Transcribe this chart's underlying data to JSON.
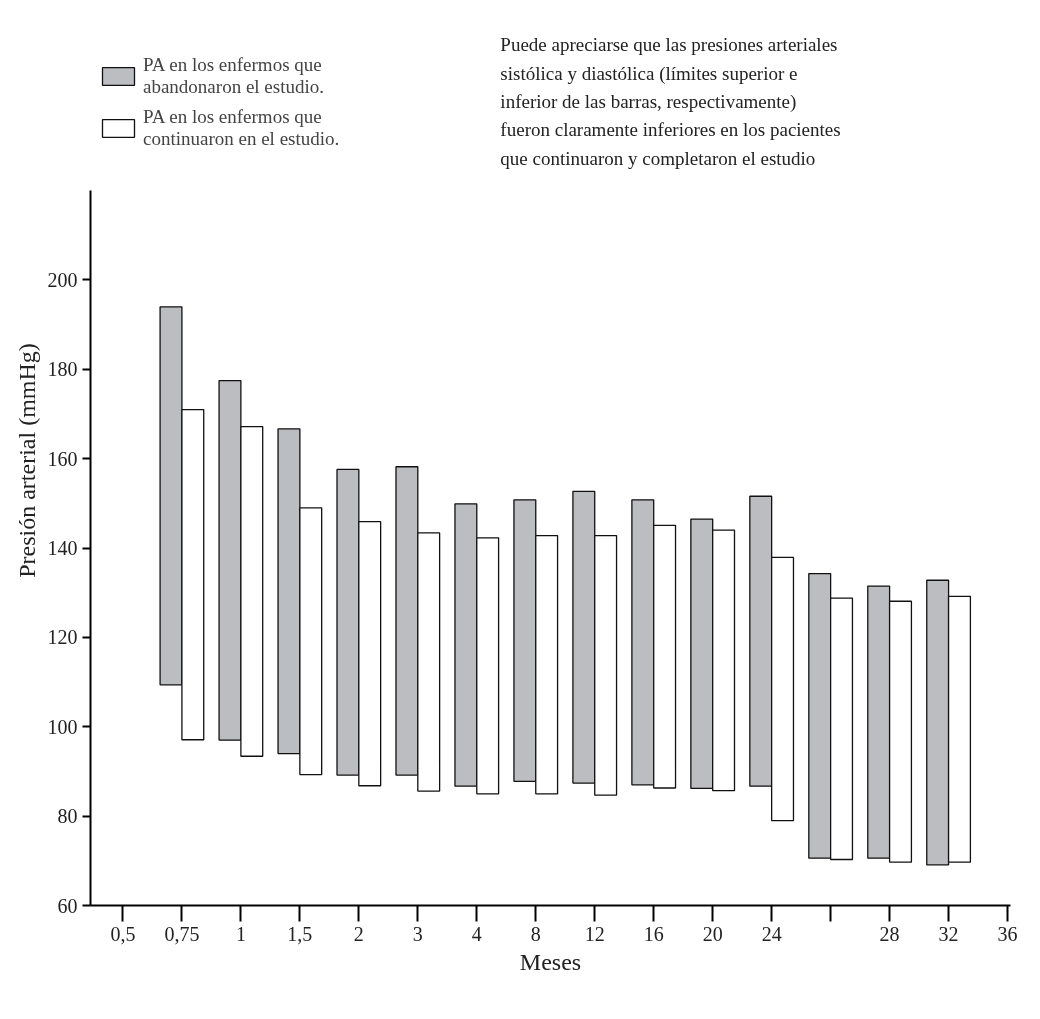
{
  "chart_data": {
    "type": "bar",
    "categories": [
      "0,5",
      "0,75",
      "1",
      "1,5",
      "2",
      "3",
      "4",
      "8",
      "12",
      "16",
      "20",
      "24",
      null,
      "28",
      "32",
      "36"
    ],
    "xlabel": "Meses",
    "ylabel": "Presión arterial (mmHg)",
    "ylim": [
      60,
      220
    ],
    "yticks": [
      60,
      80,
      100,
      120,
      140,
      160,
      180,
      200
    ],
    "series": [
      {
        "name": "PA en los enfermos que abandonaron el estudio.",
        "color": "#bcbdc1",
        "values": [
          null,
          84.6,
          80.5,
          72.7,
          68.4,
          69.0,
          63.2,
          63.0,
          65.3,
          63.8,
          60.3,
          64.9,
          63.7,
          60.9,
          63.7,
          null
        ],
        "base": [
          null,
          109.4,
          97.0,
          94.0,
          89.2,
          89.2,
          86.7,
          87.8,
          87.4,
          87.0,
          86.2,
          86.7,
          70.6,
          70.6,
          69.1,
          null
        ]
      },
      {
        "name": "PA en los enfermos que continuaron en el estudio.",
        "color": "#ffffff",
        "values": [
          null,
          73.9,
          73.8,
          59.7,
          59.1,
          57.8,
          57.3,
          57.8,
          58.1,
          58.8,
          58.3,
          58.9,
          58.5,
          58.4,
          59.5,
          null
        ],
        "base": [
          null,
          97.1,
          93.4,
          89.3,
          86.8,
          85.6,
          85.0,
          85.0,
          84.7,
          86.3,
          85.7,
          79.0,
          70.3,
          69.7,
          69.7,
          null
        ]
      }
    ],
    "legend": "top left",
    "grid": false,
    "annotations": [
      "Puede apreciarse que las presiones arteriales sistólica y diastólica (límites superior e inferior de las barras, respectivamente) fueron claramente inferiores en los pacientes que continuaron y completaron el estudio"
    ]
  }
}
